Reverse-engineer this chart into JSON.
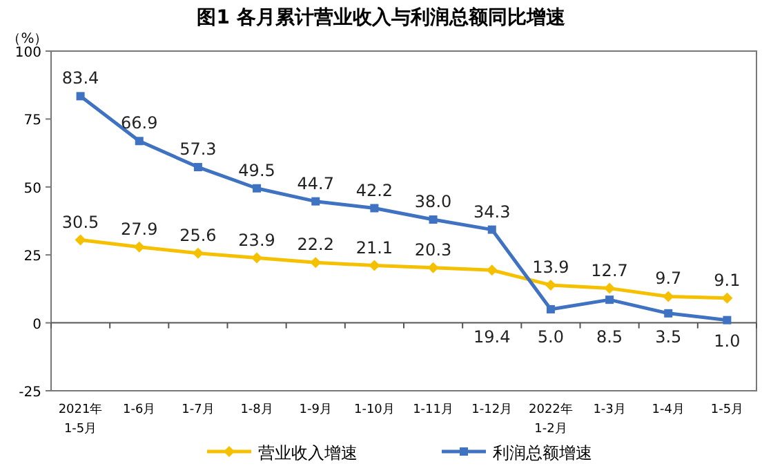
{
  "chart_data": {
    "type": "line",
    "title": "图1  各月累计营业收入与利润总额同比增速",
    "ylabel": "（%）",
    "categories": [
      "2021年\n1-5月",
      "1-6月",
      "1-7月",
      "1-8月",
      "1-9月",
      "1-10月",
      "1-11月",
      "1-12月",
      "2022年\n1-2月",
      "1-3月",
      "1-4月",
      "1-5月"
    ],
    "series": [
      {
        "name": "营业收入增速",
        "color": "#f5c000",
        "marker": "diamond",
        "values": [
          30.5,
          27.9,
          25.6,
          23.9,
          22.2,
          21.1,
          20.3,
          19.4,
          13.9,
          12.7,
          9.7,
          9.1
        ],
        "value_labels": [
          "30.5",
          "27.9",
          "25.6",
          "23.9",
          "22.2",
          "21.1",
          "20.3",
          "19.4",
          "13.9",
          "12.7",
          "9.7",
          "9.1"
        ]
      },
      {
        "name": "利润总额增速",
        "color": "#3f72c0",
        "marker": "square",
        "values": [
          83.4,
          66.9,
          57.3,
          49.5,
          44.7,
          42.2,
          38.0,
          34.3,
          5.0,
          8.5,
          3.5,
          1.0
        ],
        "value_labels": [
          "83.4",
          "66.9",
          "57.3",
          "49.5",
          "44.7",
          "42.2",
          "38.0",
          "34.3",
          "5.0",
          "8.5",
          "3.5",
          "1.0"
        ]
      }
    ],
    "ylim": [
      -25,
      100
    ],
    "yticks": [
      -25,
      0,
      25,
      50,
      75,
      100
    ],
    "legend": "bottom"
  }
}
